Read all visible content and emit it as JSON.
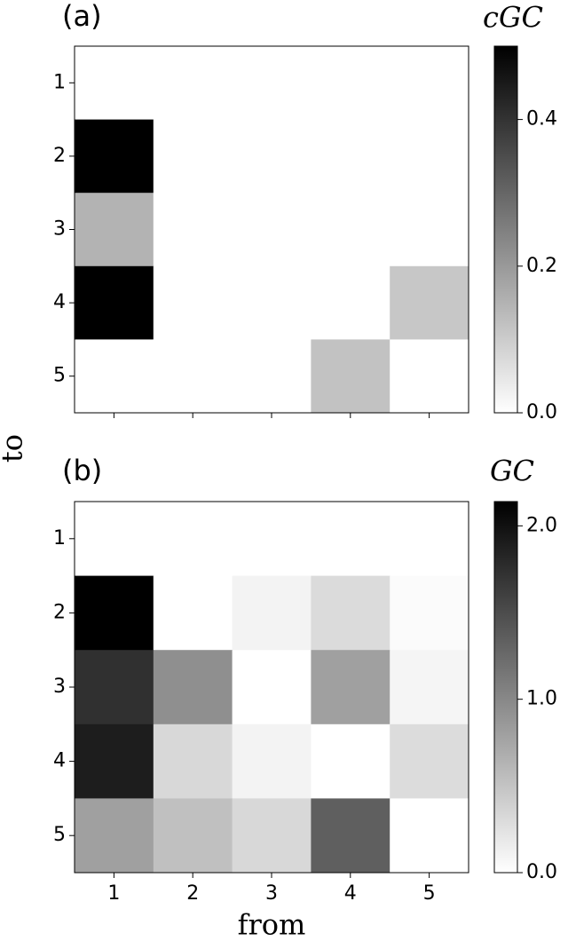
{
  "chart_data": [
    {
      "type": "heatmap",
      "panel": "(a)",
      "colorbar_label": "cGC",
      "ylabel": "to",
      "xcategories": [
        null,
        null,
        null,
        null,
        null
      ],
      "ycategories": [
        "1",
        "2",
        "3",
        "4",
        "5"
      ],
      "values": [
        [
          0,
          0,
          0,
          0,
          0
        ],
        [
          0.5,
          0,
          0,
          0,
          0
        ],
        [
          0.15,
          0,
          0,
          0,
          0
        ],
        [
          0.5,
          0,
          0,
          0,
          0.11
        ],
        [
          0,
          0,
          0,
          0.12,
          0
        ]
      ],
      "vlim": [
        0,
        0.5
      ],
      "vticks": [
        {
          "value": 0,
          "label": "0.0"
        },
        0.2,
        0.4
      ],
      "colormap": "gray_r"
    },
    {
      "type": "heatmap",
      "panel": "(b)",
      "colorbar_label": "GC",
      "xlabel": "from",
      "xcategories": [
        "1",
        "2",
        "3",
        "4",
        "5"
      ],
      "ycategories": [
        "1",
        "2",
        "3",
        "4",
        "5"
      ],
      "values": [
        [
          0,
          0,
          0,
          0,
          0
        ],
        [
          2.14,
          0,
          0.1,
          0.3,
          0.03
        ],
        [
          1.74,
          0.94,
          0,
          0.8,
          0.08
        ],
        [
          1.9,
          0.33,
          0.1,
          0,
          0.29
        ],
        [
          0.8,
          0.53,
          0.33,
          1.34,
          0
        ]
      ],
      "vlim": [
        0,
        2.14
      ],
      "vticks": [
        {
          "value": 0,
          "label": "0.0"
        },
        {
          "value": 1,
          "label": "1.0"
        },
        {
          "value": 2,
          "label": "2.0"
        }
      ],
      "colormap": "gray_r"
    }
  ]
}
